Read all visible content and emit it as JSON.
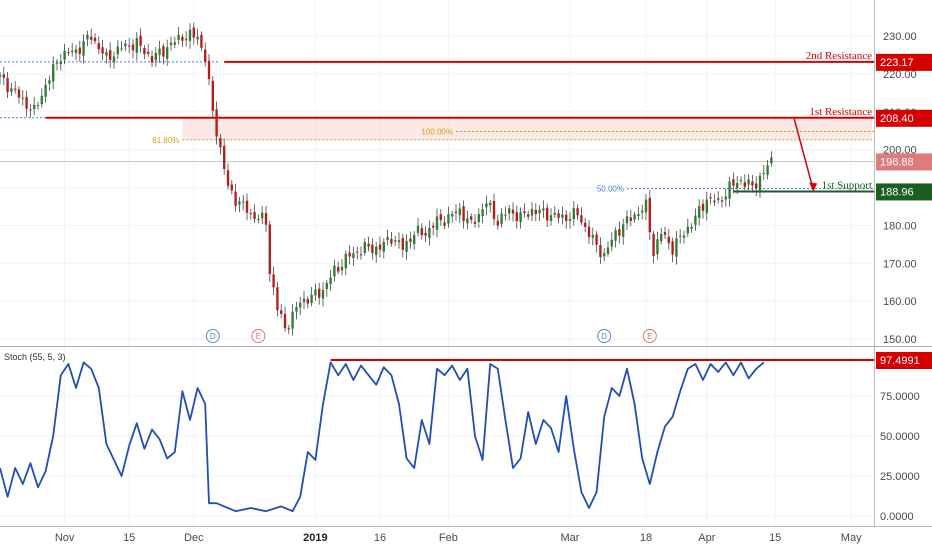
{
  "chart_data": [
    {
      "type": "candlestick",
      "y_ticks": [
        "230.00",
        "220.00",
        "210.00",
        "200.00",
        "190.00",
        "180.00",
        "170.00",
        "160.00",
        "150.00"
      ],
      "ylim": [
        147,
        235
      ],
      "x_tick_labels": [
        {
          "label": "Nov",
          "idx": 17,
          "bold": false
        },
        {
          "label": "15",
          "idx": 34,
          "bold": false
        },
        {
          "label": "Dec",
          "idx": 51,
          "bold": false
        },
        {
          "label": "2019",
          "idx": 83,
          "bold": true
        },
        {
          "label": "16",
          "idx": 100,
          "bold": false
        },
        {
          "label": "Feb",
          "idx": 118,
          "bold": false
        },
        {
          "label": "Mar",
          "idx": 150,
          "bold": false
        },
        {
          "label": "18",
          "idx": 170,
          "bold": false
        },
        {
          "label": "Apr",
          "idx": 186,
          "bold": false
        },
        {
          "label": "15",
          "idx": 204,
          "bold": false
        },
        {
          "label": "May",
          "idx": 224,
          "bold": false
        }
      ],
      "levels": [
        {
          "name": "2nd Resistance",
          "value": 223.17,
          "tag": "223.17",
          "color": "#d50000"
        },
        {
          "name": "1st Resistance",
          "value": 208.4,
          "tag": "208.40",
          "color": "#d50000"
        },
        {
          "name": "1st Support",
          "value": 188.96,
          "tag": "188.96",
          "color": "#1b5e20"
        }
      ],
      "last_price": {
        "value": 196.88,
        "tag": "196.88",
        "color": "#e06060"
      },
      "fib_levels": [
        {
          "label": "61.80%",
          "value": 202.6,
          "color": "#d4a017"
        },
        {
          "label": "100.00%",
          "value": 204.8,
          "color": "#d4a017"
        },
        {
          "label": "50.00%",
          "value": 189.7,
          "color": "#4a7fd4"
        }
      ],
      "events": [
        {
          "letter": "D",
          "idx": 56,
          "color": "#4a90d9"
        },
        {
          "letter": "E",
          "idx": 68,
          "color": "#e57373"
        },
        {
          "letter": "D",
          "idx": 159,
          "color": "#4a90d9"
        },
        {
          "letter": "E",
          "idx": 171,
          "color": "#e57373"
        }
      ],
      "close_anchors": [
        [
          0,
          219
        ],
        [
          5,
          214
        ],
        [
          9,
          210
        ],
        [
          12,
          217
        ],
        [
          16,
          225
        ],
        [
          20,
          226
        ],
        [
          24,
          230
        ],
        [
          28,
          224
        ],
        [
          32,
          227
        ],
        [
          36,
          228
        ],
        [
          40,
          224
        ],
        [
          44,
          227
        ],
        [
          48,
          230
        ],
        [
          52,
          230
        ],
        [
          54,
          224
        ],
        [
          56,
          210
        ],
        [
          58,
          200
        ],
        [
          60,
          190
        ],
        [
          62,
          187
        ],
        [
          66,
          183
        ],
        [
          70,
          181
        ],
        [
          71,
          168
        ],
        [
          73,
          158
        ],
        [
          75,
          153
        ],
        [
          77,
          156
        ],
        [
          79,
          160
        ],
        [
          82,
          161
        ],
        [
          85,
          163
        ],
        [
          88,
          168
        ],
        [
          92,
          172
        ],
        [
          96,
          174
        ],
        [
          100,
          174
        ],
        [
          103,
          177
        ],
        [
          106,
          174
        ],
        [
          109,
          178
        ],
        [
          112,
          178
        ],
        [
          115,
          181
        ],
        [
          118,
          182
        ],
        [
          121,
          184
        ],
        [
          124,
          180
        ],
        [
          128,
          186
        ],
        [
          131,
          181
        ],
        [
          134,
          184
        ],
        [
          137,
          182
        ],
        [
          140,
          184
        ],
        [
          144,
          183
        ],
        [
          148,
          182
        ],
        [
          152,
          183
        ],
        [
          156,
          176
        ],
        [
          159,
          172
        ],
        [
          162,
          178
        ],
        [
          166,
          182
        ],
        [
          170,
          185
        ],
        [
          172,
          173
        ],
        [
          174,
          178
        ],
        [
          177,
          174
        ],
        [
          180,
          178
        ],
        [
          183,
          182
        ],
        [
          186,
          187
        ],
        [
          189,
          186
        ],
        [
          192,
          190
        ],
        [
          195,
          192
        ],
        [
          198,
          190
        ],
        [
          201,
          194
        ],
        [
          203,
          197
        ]
      ]
    },
    {
      "type": "line",
      "title": "Stoch (55, 5, 3)",
      "y_ticks": [
        "75.0000",
        "50.0000",
        "25.0000",
        "0.0000"
      ],
      "ylim": [
        -2,
        104
      ],
      "level_tag": "97.4991",
      "level_value": 97.4991,
      "series_color": "#1f4fb5",
      "points": [
        [
          0,
          30
        ],
        [
          2,
          12
        ],
        [
          4,
          30
        ],
        [
          6,
          20
        ],
        [
          8,
          33
        ],
        [
          10,
          18
        ],
        [
          12,
          28
        ],
        [
          14,
          50
        ],
        [
          16,
          88
        ],
        [
          18,
          95
        ],
        [
          20,
          80
        ],
        [
          22,
          96
        ],
        [
          24,
          92
        ],
        [
          26,
          80
        ],
        [
          28,
          45
        ],
        [
          30,
          35
        ],
        [
          32,
          25
        ],
        [
          34,
          44
        ],
        [
          36,
          58
        ],
        [
          38,
          42
        ],
        [
          40,
          54
        ],
        [
          42,
          48
        ],
        [
          44,
          36
        ],
        [
          46,
          40
        ],
        [
          48,
          78
        ],
        [
          50,
          60
        ],
        [
          52,
          80
        ],
        [
          54,
          70
        ],
        [
          55,
          8
        ],
        [
          57,
          8
        ],
        [
          59,
          6
        ],
        [
          62,
          3
        ],
        [
          66,
          5
        ],
        [
          70,
          3
        ],
        [
          74,
          6
        ],
        [
          77,
          3
        ],
        [
          79,
          12
        ],
        [
          81,
          40
        ],
        [
          83,
          35
        ],
        [
          85,
          70
        ],
        [
          87,
          96
        ],
        [
          89,
          88
        ],
        [
          91,
          95
        ],
        [
          93,
          85
        ],
        [
          95,
          94
        ],
        [
          97,
          88
        ],
        [
          99,
          82
        ],
        [
          101,
          93
        ],
        [
          103,
          88
        ],
        [
          105,
          70
        ],
        [
          107,
          36
        ],
        [
          109,
          30
        ],
        [
          111,
          60
        ],
        [
          113,
          45
        ],
        [
          115,
          92
        ],
        [
          117,
          88
        ],
        [
          119,
          94
        ],
        [
          121,
          85
        ],
        [
          123,
          92
        ],
        [
          125,
          50
        ],
        [
          127,
          35
        ],
        [
          129,
          95
        ],
        [
          131,
          92
        ],
        [
          133,
          60
        ],
        [
          135,
          30
        ],
        [
          137,
          36
        ],
        [
          139,
          65
        ],
        [
          141,
          45
        ],
        [
          143,
          60
        ],
        [
          145,
          55
        ],
        [
          147,
          40
        ],
        [
          149,
          75
        ],
        [
          151,
          42
        ],
        [
          153,
          15
        ],
        [
          155,
          5
        ],
        [
          157,
          15
        ],
        [
          159,
          62
        ],
        [
          161,
          80
        ],
        [
          163,
          75
        ],
        [
          165,
          92
        ],
        [
          167,
          70
        ],
        [
          169,
          36
        ],
        [
          171,
          20
        ],
        [
          173,
          40
        ],
        [
          175,
          56
        ],
        [
          177,
          62
        ],
        [
          179,
          78
        ],
        [
          181,
          92
        ],
        [
          183,
          95
        ],
        [
          185,
          85
        ],
        [
          187,
          95
        ],
        [
          189,
          90
        ],
        [
          191,
          96
        ],
        [
          193,
          88
        ],
        [
          195,
          96
        ],
        [
          197,
          86
        ],
        [
          199,
          92
        ],
        [
          201,
          96
        ]
      ]
    }
  ]
}
